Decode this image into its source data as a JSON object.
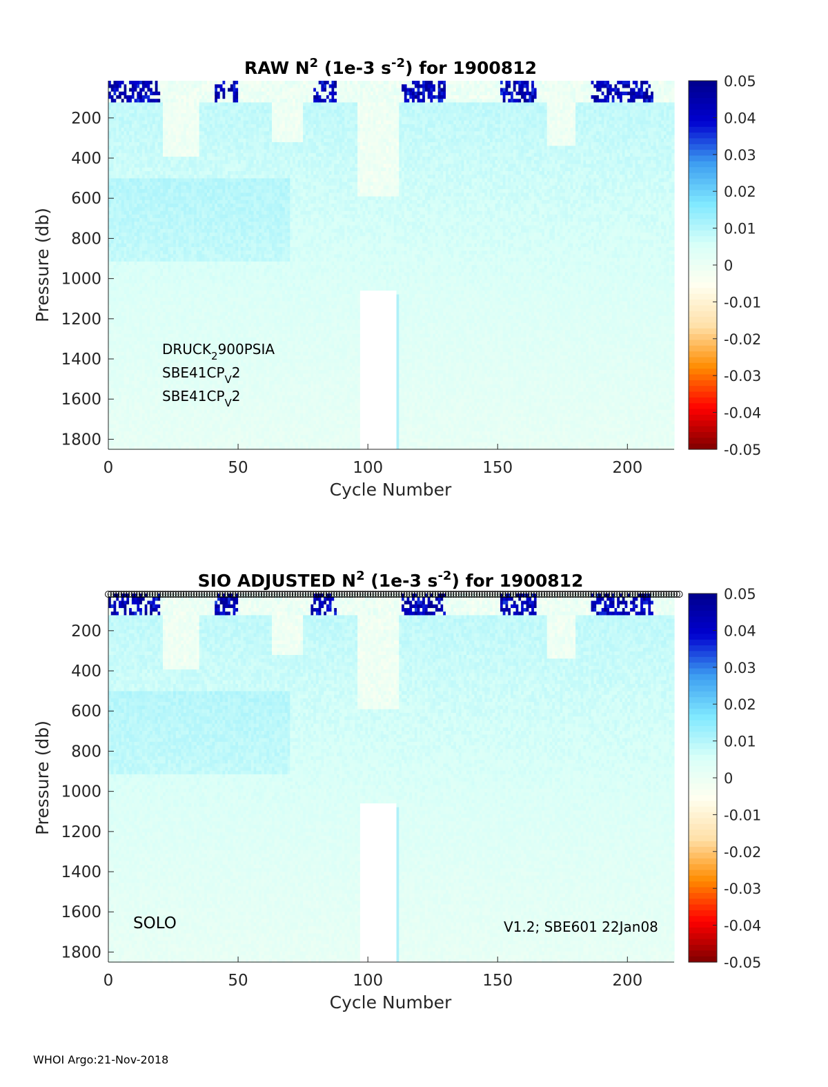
{
  "colors": {
    "cmap": [
      "#7f0000",
      "#ff0000",
      "#ff8c00",
      "#ffe0a8",
      "#fffff0",
      "#d8fff8",
      "#7fe8ff",
      "#3c9cf0",
      "#0000d0",
      "#00008b"
    ],
    "background_field": "#b0f0f8",
    "axis": "#262626"
  },
  "footer": "WHOI Argo:21-Nov-2018",
  "chart_data": [
    {
      "type": "heatmap",
      "title_parts": [
        "RAW N",
        "2",
        " (1e-3 s",
        "-2",
        ") for 1900812"
      ],
      "title": "RAW N2 (1e-3 s-2) for 1900812",
      "xlabel": "Cycle Number",
      "ylabel": "Pressure (db)",
      "xlim": [
        0,
        218
      ],
      "ylim": [
        15,
        1850
      ],
      "y_reversed": true,
      "xticks": [
        "0",
        "50",
        "100",
        "150",
        "200"
      ],
      "yticks": [
        "200",
        "400",
        "600",
        "800",
        "1000",
        "1200",
        "1400",
        "1600",
        "1800"
      ],
      "colorbar": {
        "range": [
          -0.05,
          0.05
        ],
        "ticks": [
          "0.05",
          "0.04",
          "0.03",
          "0.02",
          "0.01",
          "0",
          "-0.01",
          "-0.02",
          "-0.03",
          "-0.04",
          "-0.05"
        ]
      },
      "annotations": [
        {
          "base": "DRUCK",
          "sub": "2",
          "rest": "900PSIA"
        },
        {
          "base": "SBE41CP",
          "sub": "V",
          "rest": "2"
        },
        {
          "base": "SBE41CP",
          "sub": "V",
          "rest": "2"
        }
      ],
      "missing_region": {
        "x_range": [
          97,
          111
        ],
        "from_pressure": 1060
      },
      "markers_row": false
    },
    {
      "type": "heatmap",
      "title_parts": [
        "SIO  ADJUSTED N",
        "2",
        " (1e-3 s",
        "-2",
        ") for 1900812"
      ],
      "title": "SIO  ADJUSTED N2 (1e-3 s-2) for 1900812",
      "xlabel": "Cycle Number",
      "ylabel": "Pressure (db)",
      "xlim": [
        0,
        218
      ],
      "ylim": [
        15,
        1850
      ],
      "y_reversed": true,
      "xticks": [
        "0",
        "50",
        "100",
        "150",
        "200"
      ],
      "yticks": [
        "200",
        "400",
        "600",
        "800",
        "1000",
        "1200",
        "1400",
        "1600",
        "1800"
      ],
      "colorbar": {
        "range": [
          -0.05,
          0.05
        ],
        "ticks": [
          "0.05",
          "0.04",
          "0.03",
          "0.02",
          "0.01",
          "0",
          "-0.01",
          "-0.02",
          "-0.03",
          "-0.04",
          "-0.05"
        ]
      },
      "label_left": "SOLO",
      "label_right": "V1.2; SBE601 22Jan08",
      "missing_region": {
        "x_range": [
          97,
          111
        ],
        "from_pressure": 1060
      },
      "markers_row": true
    }
  ]
}
